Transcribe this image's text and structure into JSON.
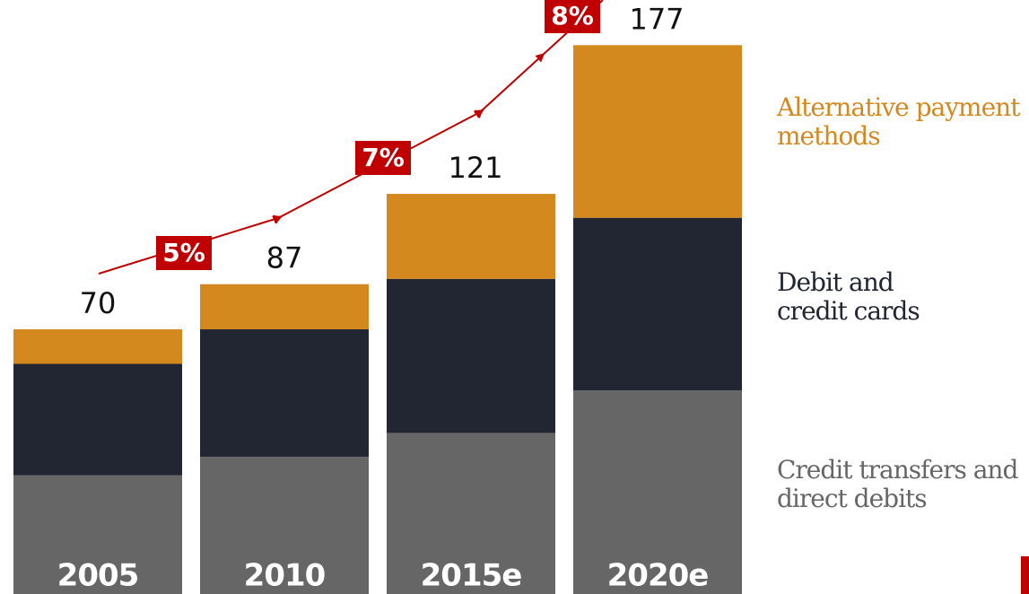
{
  "chart_data": {
    "type": "stacked-bar",
    "categories": [
      "2005",
      "2010",
      "2015e",
      "2020e"
    ],
    "series": [
      {
        "name": "Credit transfers and direct debits",
        "color": "#666666",
        "values": [
          15,
          22,
          31,
          47
        ]
      },
      {
        "name": "Debit and credit cards",
        "color": "#212632",
        "values": [
          42,
          48,
          58,
          65
        ]
      },
      {
        "name": "Alternative payment methods",
        "color": "#d4891e",
        "values": [
          13,
          17,
          32,
          65
        ]
      }
    ],
    "totals": [
      70,
      87,
      121,
      177
    ],
    "growth": [
      "5%",
      "7%",
      "8%"
    ],
    "growth_color": "#c00000",
    "ylim": [
      -30,
      194
    ]
  }
}
